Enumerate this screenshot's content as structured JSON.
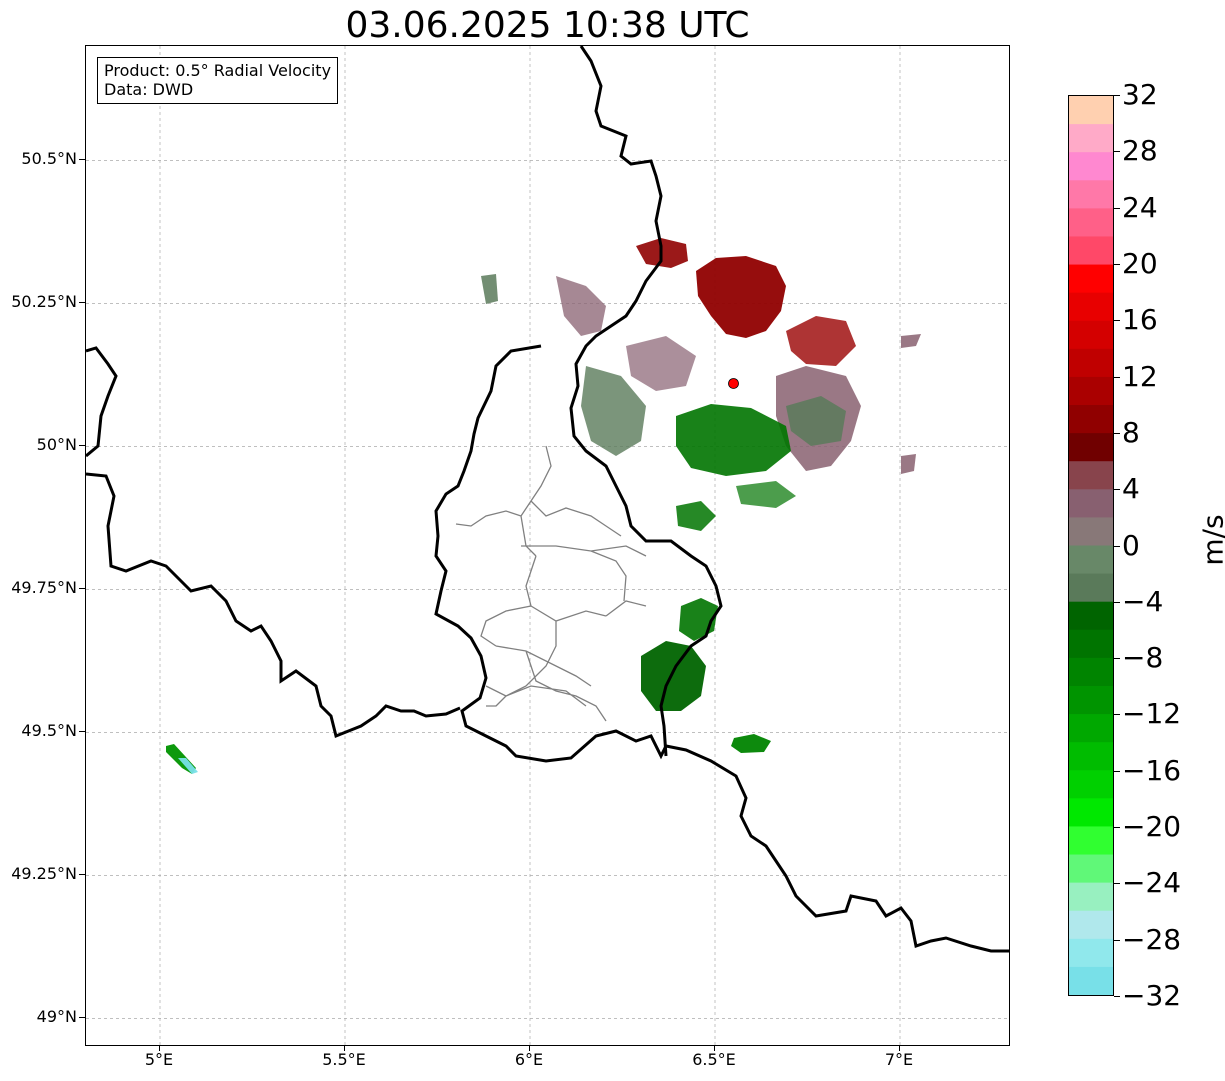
{
  "title": "03.06.2025 10:38 UTC",
  "info": {
    "product": "Product: 0.5° Radial Velocity",
    "data": "Data: DWD"
  },
  "map": {
    "lon_range": [
      4.8,
      7.3
    ],
    "lat_range": [
      48.95,
      50.7
    ],
    "lat_ticks": [
      "50.5°N",
      "50.25°N",
      "50°N",
      "49.75°N",
      "49.5°N",
      "49.25°N",
      "49°N"
    ],
    "lat_values": [
      50.5,
      50.25,
      50.0,
      49.75,
      49.5,
      49.25,
      49.0
    ],
    "lon_ticks": [
      "5°E",
      "5.5°E",
      "6°E",
      "6.5°E",
      "7°E"
    ],
    "lon_values": [
      5.0,
      5.5,
      6.0,
      6.5,
      7.0
    ],
    "gridlines": true,
    "radar_site": {
      "lon": 6.55,
      "lat": 50.11,
      "color": "#ff0000"
    }
  },
  "colorbar": {
    "unit": "m/s",
    "min": -32,
    "max": 32,
    "tick_labels": [
      "32",
      "28",
      "24",
      "20",
      "16",
      "12",
      "8",
      "4",
      "0",
      "−4",
      "−8",
      "−12",
      "−16",
      "−20",
      "−24",
      "−28",
      "−32"
    ],
    "tick_values": [
      32,
      28,
      24,
      20,
      16,
      12,
      8,
      4,
      0,
      -4,
      -8,
      -12,
      -16,
      -20,
      -24,
      -28,
      -32
    ],
    "colors_top_to_bottom": [
      "#ffd0b0",
      "#ffaac8",
      "#ff88d0",
      "#ff78a8",
      "#ff6088",
      "#ff4868",
      "#ff0000",
      "#e80000",
      "#d40000",
      "#c00000",
      "#aa0000",
      "#900000",
      "#700000",
      "#88444c",
      "#886070",
      "#887878",
      "#688868",
      "#5a7a5a",
      "#006400",
      "#007400",
      "#008400",
      "#009400",
      "#00a800",
      "#00bc00",
      "#00d000",
      "#00e800",
      "#30ff30",
      "#60f878",
      "#98f0c0",
      "#b0e8ec",
      "#90e8ec",
      "#78e0e8"
    ]
  }
}
